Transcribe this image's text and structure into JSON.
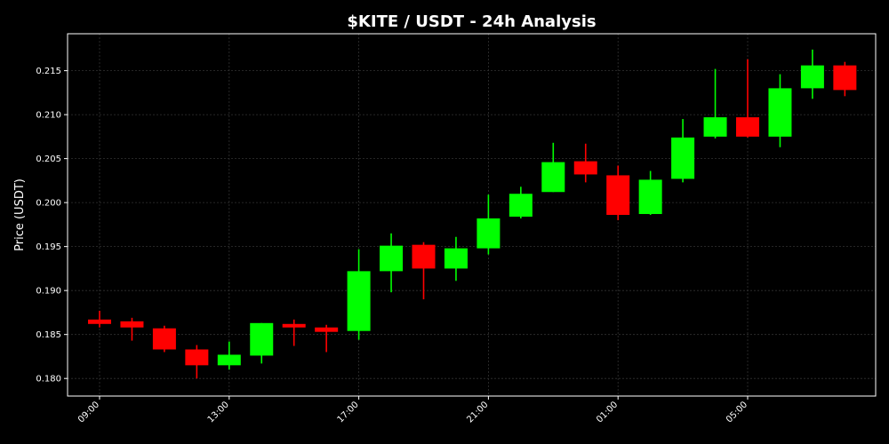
{
  "chart_data": {
    "type": "candlestick",
    "title": "$KITE / USDT - 24h Analysis",
    "xlabel": "",
    "ylabel": "Price (USDT)",
    "ylim": [
      0.178,
      0.2192
    ],
    "y_ticks": [
      0.18,
      0.185,
      0.19,
      0.195,
      0.2,
      0.205,
      0.21,
      0.215
    ],
    "y_tick_labels": [
      "0.180",
      "0.185",
      "0.190",
      "0.195",
      "0.200",
      "0.205",
      "0.210",
      "0.215"
    ],
    "x_ticks": [
      "09:00",
      "13:00",
      "17:00",
      "21:00",
      "01:00",
      "05:00"
    ],
    "x_tick_indices": [
      0,
      4,
      8,
      12,
      16,
      20
    ],
    "grid": true,
    "up_color": "#00ff00",
    "down_color": "#ff0000",
    "background": "#000000",
    "candles": [
      {
        "t": "09:00",
        "open": 0.1867,
        "high": 0.1877,
        "low": 0.1858,
        "close": 0.1862
      },
      {
        "t": "10:00",
        "open": 0.1865,
        "high": 0.1869,
        "low": 0.1843,
        "close": 0.1858
      },
      {
        "t": "11:00",
        "open": 0.1857,
        "high": 0.186,
        "low": 0.183,
        "close": 0.1833
      },
      {
        "t": "12:00",
        "open": 0.1833,
        "high": 0.1838,
        "low": 0.18,
        "close": 0.1815
      },
      {
        "t": "13:00",
        "open": 0.1815,
        "high": 0.1842,
        "low": 0.181,
        "close": 0.1827
      },
      {
        "t": "14:00",
        "open": 0.1826,
        "high": 0.1863,
        "low": 0.1817,
        "close": 0.1863
      },
      {
        "t": "15:00",
        "open": 0.1862,
        "high": 0.1867,
        "low": 0.1837,
        "close": 0.1858
      },
      {
        "t": "16:00",
        "open": 0.1858,
        "high": 0.1861,
        "low": 0.183,
        "close": 0.1853
      },
      {
        "t": "17:00",
        "open": 0.1854,
        "high": 0.1947,
        "low": 0.1844,
        "close": 0.1922
      },
      {
        "t": "18:00",
        "open": 0.1922,
        "high": 0.1965,
        "low": 0.1898,
        "close": 0.1951
      },
      {
        "t": "19:00",
        "open": 0.1952,
        "high": 0.1955,
        "low": 0.189,
        "close": 0.1925
      },
      {
        "t": "20:00",
        "open": 0.1925,
        "high": 0.1961,
        "low": 0.1911,
        "close": 0.1948
      },
      {
        "t": "21:00",
        "open": 0.1948,
        "high": 0.2009,
        "low": 0.1941,
        "close": 0.1982
      },
      {
        "t": "22:00",
        "open": 0.1984,
        "high": 0.2018,
        "low": 0.1982,
        "close": 0.201
      },
      {
        "t": "23:00",
        "open": 0.2012,
        "high": 0.2068,
        "low": 0.2012,
        "close": 0.2046
      },
      {
        "t": "00:00",
        "open": 0.2047,
        "high": 0.2067,
        "low": 0.2023,
        "close": 0.2032
      },
      {
        "t": "01:00",
        "open": 0.2031,
        "high": 0.2042,
        "low": 0.198,
        "close": 0.1986
      },
      {
        "t": "02:00",
        "open": 0.1987,
        "high": 0.2036,
        "low": 0.1986,
        "close": 0.2026
      },
      {
        "t": "03:00",
        "open": 0.2027,
        "high": 0.2095,
        "low": 0.2023,
        "close": 0.2074
      },
      {
        "t": "04:00",
        "open": 0.2075,
        "high": 0.2152,
        "low": 0.2073,
        "close": 0.2097
      },
      {
        "t": "05:00",
        "open": 0.2097,
        "high": 0.2163,
        "low": 0.2074,
        "close": 0.2075
      },
      {
        "t": "06:00",
        "open": 0.2075,
        "high": 0.2146,
        "low": 0.2063,
        "close": 0.213
      },
      {
        "t": "07:00",
        "open": 0.213,
        "high": 0.2174,
        "low": 0.2118,
        "close": 0.2156
      },
      {
        "t": "08:00",
        "open": 0.2156,
        "high": 0.216,
        "low": 0.2121,
        "close": 0.2128
      }
    ]
  }
}
